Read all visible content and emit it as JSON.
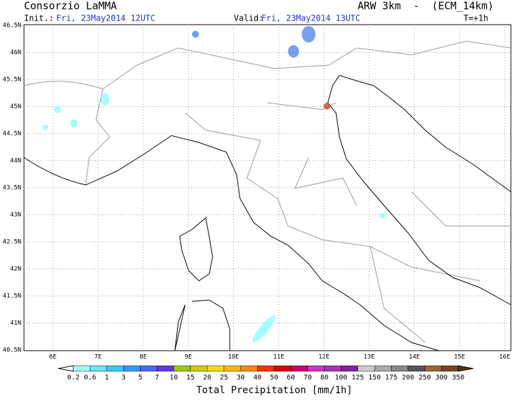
{
  "header": {
    "left_title": "Consorzio LaMMA",
    "right_title": "ARW 3km  -  (ECM_14km)",
    "init_label": "Init.:",
    "init_value": "Fri, 23May2014 12UTC",
    "valid_label": "Valid:",
    "valid_value": "Fri, 23May2014 13UTC",
    "lead_time": "T=+1h"
  },
  "map": {
    "lon_ticks": [
      "6E",
      "7E",
      "8E",
      "9E",
      "10E",
      "11E",
      "12E",
      "13E",
      "14E",
      "15E",
      "16E"
    ],
    "lat_ticks": [
      "46.5N",
      "46N",
      "45.5N",
      "45N",
      "44.5N",
      "44N",
      "43.5N",
      "43N",
      "42.5N",
      "42N",
      "41.5N",
      "41N",
      "40.5N"
    ]
  },
  "colorbar": {
    "title": "Total Precipitation [mm/1h]",
    "labels": [
      0.2,
      0.6,
      1,
      3,
      5,
      7,
      10,
      15,
      20,
      25,
      30,
      40,
      50,
      60,
      70,
      80,
      100,
      125,
      150,
      175,
      200,
      250,
      300,
      350
    ],
    "colors": [
      "#ffffff",
      "#99ffff",
      "#66e6ff",
      "#33ccff",
      "#3399ff",
      "#4d66ff",
      "#6633ff",
      "#99cc00",
      "#cccc00",
      "#ffdd00",
      "#ffbb00",
      "#ff8800",
      "#ff3300",
      "#dd0000",
      "#cc0066",
      "#cc33cc",
      "#aa33aa",
      "#7f2299",
      "#cccccc",
      "#aaaaaa",
      "#888888",
      "#555555",
      "#996633",
      "#774422",
      "#5a3310"
    ]
  }
}
